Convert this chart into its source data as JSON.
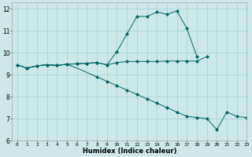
{
  "xlabel": "Humidex (Indice chaleur)",
  "bg_color": "#cce8e8",
  "grid_color": "#99cccc",
  "line_color": "#006666",
  "xlim": [
    -0.5,
    23
  ],
  "ylim": [
    6,
    12.3
  ],
  "xticks": [
    0,
    1,
    2,
    3,
    4,
    5,
    6,
    7,
    8,
    9,
    10,
    11,
    12,
    13,
    14,
    15,
    16,
    17,
    18,
    19,
    20,
    21,
    22,
    23
  ],
  "yticks": [
    6,
    7,
    8,
    9,
    10,
    11,
    12
  ],
  "line1_x": [
    0,
    1,
    2,
    3,
    4,
    5,
    6,
    7,
    8,
    9,
    10,
    11,
    12,
    13,
    14,
    15,
    16,
    17,
    18
  ],
  "line1_y": [
    9.45,
    9.3,
    9.4,
    9.45,
    9.42,
    9.47,
    9.5,
    9.52,
    9.55,
    9.45,
    10.05,
    10.85,
    11.65,
    11.65,
    11.85,
    11.75,
    11.9,
    11.1,
    9.82
  ],
  "line2_x": [
    0,
    1,
    2,
    3,
    4,
    5,
    6,
    7,
    8,
    9,
    10,
    11,
    12,
    13,
    14,
    15,
    16,
    17,
    18,
    19
  ],
  "line2_y": [
    9.45,
    9.3,
    9.4,
    9.45,
    9.42,
    9.47,
    9.5,
    9.52,
    9.55,
    9.45,
    9.55,
    9.6,
    9.6,
    9.6,
    9.6,
    9.62,
    9.62,
    9.62,
    9.62,
    9.82
  ],
  "line3_x": [
    0,
    1,
    2,
    3,
    4,
    5,
    6,
    7,
    8,
    9,
    10,
    11,
    12,
    13,
    14,
    15,
    16,
    17,
    18,
    19,
    20,
    21,
    22,
    23
  ],
  "line3_y": [
    9.45,
    9.3,
    9.4,
    9.45,
    9.42,
    9.47,
    9.3,
    9.1,
    8.9,
    8.7,
    8.5,
    8.3,
    8.1,
    7.9,
    7.7,
    7.5,
    7.3,
    7.1,
    7.05,
    7.0,
    6.5,
    7.3,
    7.1,
    7.05
  ]
}
